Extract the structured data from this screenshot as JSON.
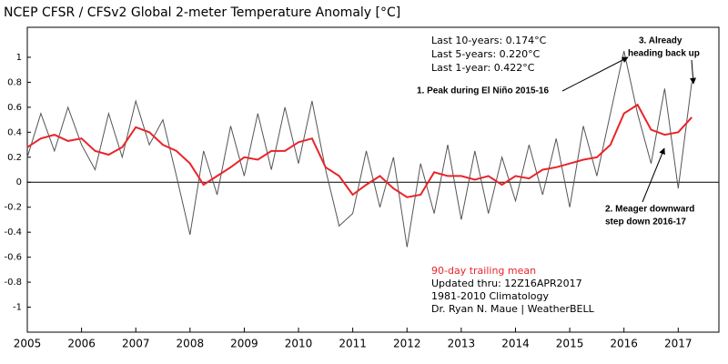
{
  "chart_data": {
    "type": "line",
    "title": "NCEP CFSR / CFSv2 Global 2-meter Temperature Anomaly [°C]",
    "stats": [
      "Last 10-years: 0.174°C",
      "Last 5-years: 0.220°C",
      "Last 1-year:  0.422°C"
    ],
    "annotations": [
      [
        "1. Peak during El Niño 2015-16"
      ],
      [
        "2. Meager downward",
        "step down 2016-17"
      ],
      [
        "3. Already",
        "heading back up"
      ]
    ],
    "notes": [
      "Updated thru: 12Z16APR2017",
      "1981-2010 Climatology",
      "Dr. Ryan N. Maue | WeatherBELL"
    ],
    "x": [
      2005,
      2005.25,
      2005.5,
      2005.75,
      2006,
      2006.25,
      2006.5,
      2006.75,
      2007,
      2007.25,
      2007.5,
      2007.75,
      2008,
      2008.25,
      2008.5,
      2008.75,
      2009,
      2009.25,
      2009.5,
      2009.75,
      2010,
      2010.25,
      2010.5,
      2010.75,
      2011,
      2011.25,
      2011.5,
      2011.75,
      2012,
      2012.25,
      2012.5,
      2012.75,
      2013,
      2013.25,
      2013.5,
      2013.75,
      2014,
      2014.25,
      2014.5,
      2014.75,
      2015,
      2015.25,
      2015.5,
      2015.75,
      2016,
      2016.25,
      2016.5,
      2016.75,
      2017,
      2017.25
    ],
    "series": [
      {
        "color": "#555555",
        "values": [
          0.2,
          0.55,
          0.25,
          0.6,
          0.3,
          0.1,
          0.55,
          0.2,
          0.65,
          0.3,
          0.5,
          0.05,
          -0.42,
          0.25,
          -0.1,
          0.45,
          0.05,
          0.55,
          0.1,
          0.6,
          0.15,
          0.65,
          0.1,
          -0.35,
          -0.25,
          0.25,
          -0.2,
          0.2,
          -0.52,
          0.15,
          -0.25,
          0.3,
          -0.3,
          0.25,
          -0.25,
          0.2,
          -0.15,
          0.3,
          -0.1,
          0.35,
          -0.2,
          0.45,
          0.05,
          0.55,
          1.05,
          0.55,
          0.15,
          0.75,
          -0.05,
          0.8
        ]
      },
      {
        "name": "90-day trailing mean",
        "color": "#e8252b",
        "values": [
          0.28,
          0.35,
          0.38,
          0.33,
          0.35,
          0.25,
          0.22,
          0.28,
          0.44,
          0.4,
          0.3,
          0.25,
          0.15,
          -0.02,
          0.05,
          0.12,
          0.2,
          0.18,
          0.25,
          0.25,
          0.32,
          0.35,
          0.12,
          0.05,
          -0.1,
          -0.02,
          0.05,
          -0.05,
          -0.12,
          -0.1,
          0.08,
          0.05,
          0.05,
          0.02,
          0.05,
          -0.02,
          0.05,
          0.03,
          0.1,
          0.12,
          0.15,
          0.18,
          0.2,
          0.3,
          0.55,
          0.62,
          0.42,
          0.38,
          0.4,
          0.52
        ]
      }
    ],
    "xlim": [
      2005,
      2017.75
    ],
    "xticks": [
      2005,
      2006,
      2007,
      2008,
      2009,
      2010,
      2011,
      2012,
      2013,
      2014,
      2015,
      2016,
      2017
    ],
    "ylim": [
      -1.2,
      1.24
    ],
    "yticks": [
      -1,
      -0.8,
      -0.6,
      -0.4,
      -0.2,
      0,
      0.2,
      0.4,
      0.6,
      0.8,
      1
    ]
  }
}
